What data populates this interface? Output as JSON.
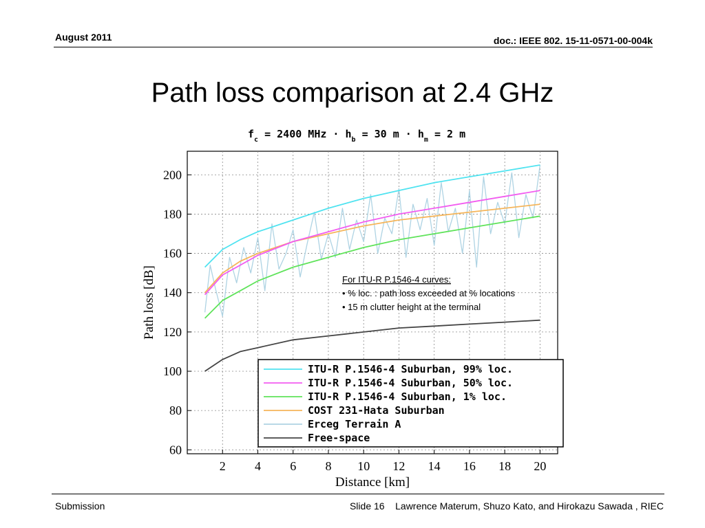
{
  "header": {
    "date": "August 2011",
    "doc_id": "doc.: IEEE 802. 15-11-0571-00-004k"
  },
  "slide": {
    "title": "Path loss comparison at 2.4 GHz"
  },
  "footer": {
    "left": "Submission",
    "slide_label": "Slide 16",
    "authors": "Lawrence Materum, Shuzo Kato, and Hirokazu Sawada , RIEC"
  },
  "annotation": {
    "heading": "For ITU-R P.1546-4 curves:",
    "lines": [
      "• % loc. : path loss exceeded at % locations",
      "• 15 m clutter height at the terminal"
    ]
  },
  "chart_data": {
    "type": "line",
    "title_parts": {
      "fc": "f",
      "fc_sub": "c",
      "fc_val": " = 2400 MHz · h",
      "hb_sub": "b",
      "hb_val": " = 30 m · h",
      "hm_sub": "m",
      "hm_val": " = 2 m"
    },
    "xlabel": "Distance [km]",
    "ylabel": "Path loss [dB]",
    "xlim": [
      0,
      21
    ],
    "ylim": [
      58,
      212
    ],
    "xticks": [
      2,
      4,
      6,
      8,
      10,
      12,
      14,
      16,
      18,
      20
    ],
    "yticks": [
      60,
      80,
      100,
      120,
      140,
      160,
      180,
      200
    ],
    "grid": true,
    "legend_position": "bottom-right",
    "series": [
      {
        "name": "ITU-R P.1546-4 Suburban, 99% loc.",
        "color": "#4fe3f0",
        "x": [
          1,
          2,
          3,
          4,
          6,
          8,
          10,
          12,
          14,
          16,
          18,
          20
        ],
        "y": [
          153,
          162,
          167,
          171,
          177,
          183,
          188,
          192,
          196,
          199,
          202,
          205
        ]
      },
      {
        "name": "ITU-R P.1546-4 Suburban, 50% loc.",
        "color": "#f25cf0",
        "x": [
          1,
          2,
          3,
          4,
          6,
          8,
          10,
          12,
          14,
          16,
          18,
          20
        ],
        "y": [
          139,
          149,
          154,
          159,
          166,
          171,
          176,
          180,
          183,
          186,
          189,
          192
        ]
      },
      {
        "name": "ITU-R P.1546-4 Suburban, 1% loc.",
        "color": "#5fe35a",
        "x": [
          1,
          2,
          3,
          4,
          6,
          8,
          10,
          12,
          14,
          16,
          18,
          20
        ],
        "y": [
          127,
          136,
          141,
          146,
          153,
          158,
          163,
          167,
          170,
          173,
          176,
          179
        ]
      },
      {
        "name": "COST 231-Hata Suburban",
        "color": "#f5b55a",
        "x": [
          1,
          2,
          3,
          4,
          6,
          8,
          10,
          12,
          14,
          16,
          18,
          20
        ],
        "y": [
          140,
          150,
          156,
          160,
          166,
          170,
          174,
          177,
          179,
          181,
          183,
          185
        ]
      },
      {
        "name": "Erceg Terrain A",
        "color": "#aed3e3",
        "x": [
          1,
          1.3,
          1.6,
          2,
          2.4,
          2.8,
          3.2,
          3.6,
          4,
          4.4,
          4.8,
          5.2,
          5.6,
          6,
          6.4,
          6.8,
          7.2,
          7.6,
          8,
          8.4,
          8.8,
          9.2,
          9.6,
          10,
          10.4,
          10.8,
          11.2,
          11.6,
          12,
          12.4,
          12.8,
          13.2,
          13.6,
          14,
          14.4,
          14.8,
          15.2,
          15.6,
          16,
          16.4,
          16.8,
          17.2,
          17.6,
          18,
          18.4,
          18.8,
          19.2,
          19.6,
          20
        ],
        "y": [
          130,
          154,
          142,
          128,
          158,
          145,
          163,
          150,
          168,
          141,
          175,
          152,
          160,
          172,
          148,
          165,
          181,
          157,
          170,
          158,
          183,
          162,
          177,
          166,
          190,
          160,
          178,
          170,
          193,
          158,
          185,
          172,
          188,
          164,
          196,
          171,
          183,
          160,
          192,
          153,
          199,
          170,
          186,
          175,
          201,
          168,
          190,
          178,
          205
        ]
      },
      {
        "name": "Free-space",
        "color": "#444444",
        "x": [
          1,
          2,
          3,
          4,
          6,
          8,
          10,
          12,
          14,
          16,
          18,
          20
        ],
        "y": [
          100,
          106,
          110,
          112,
          116,
          118,
          120,
          122,
          123,
          124,
          125,
          126
        ]
      }
    ]
  }
}
